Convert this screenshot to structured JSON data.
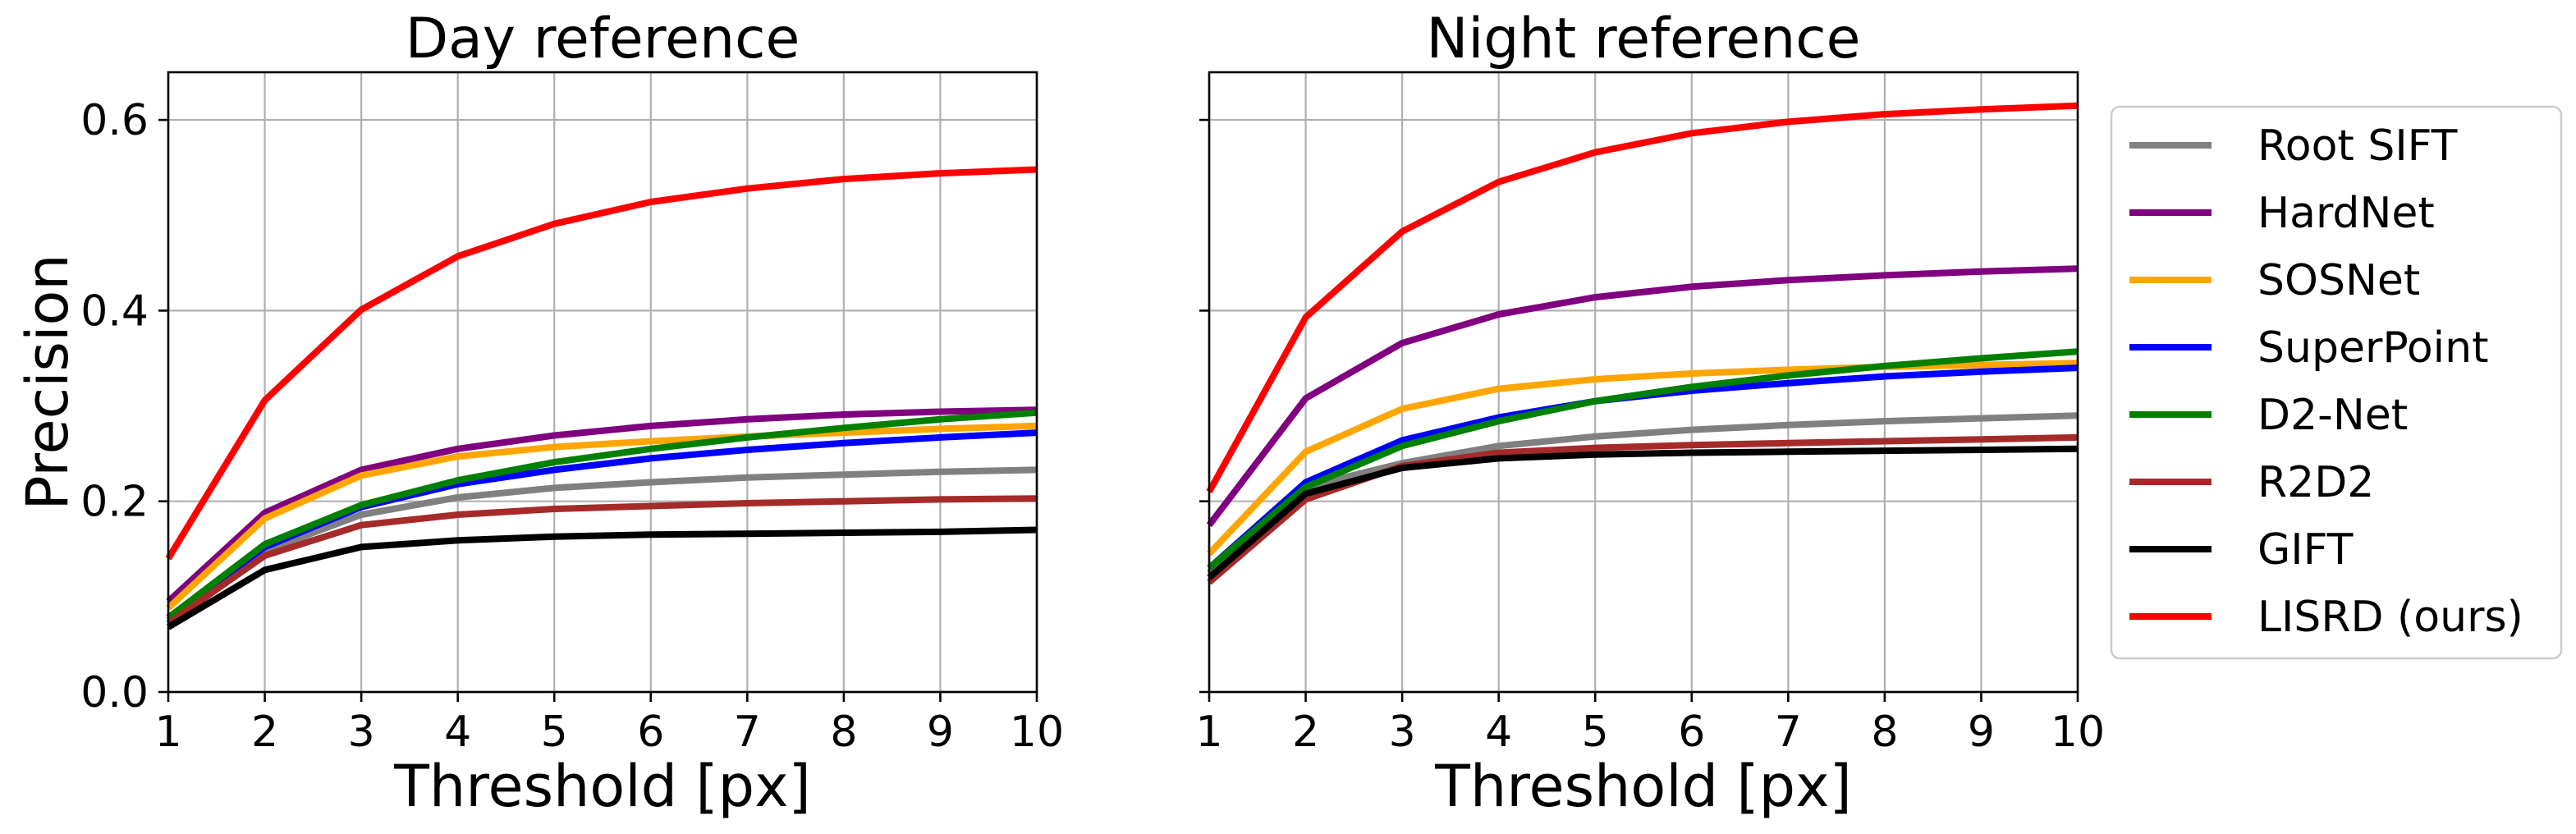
{
  "chart_data": [
    {
      "type": "line",
      "title": "Day reference",
      "xlabel": "Threshold [px]",
      "ylabel": "Precision",
      "x": [
        1,
        2,
        3,
        4,
        5,
        6,
        7,
        8,
        9,
        10
      ],
      "xlim": [
        1,
        10
      ],
      "ylim": [
        0,
        0.65
      ],
      "x_ticks": [
        "1",
        "2",
        "3",
        "4",
        "5",
        "6",
        "7",
        "8",
        "9",
        "10"
      ],
      "y_ticks": [
        "0.0",
        "0.2",
        "0.4",
        "0.6"
      ],
      "y_tick_values": [
        0,
        0.2,
        0.4,
        0.6
      ],
      "grid": true,
      "series": [
        {
          "name": "Root SIFT",
          "color": "#808080",
          "values": [
            0.075,
            0.148,
            0.186,
            0.204,
            0.214,
            0.22,
            0.225,
            0.228,
            0.231,
            0.233
          ]
        },
        {
          "name": "HardNet",
          "color": "#800080",
          "values": [
            0.095,
            0.188,
            0.233,
            0.255,
            0.269,
            0.279,
            0.286,
            0.291,
            0.294,
            0.296
          ]
        },
        {
          "name": "SOSNet",
          "color": "#ffa500",
          "values": [
            0.088,
            0.182,
            0.227,
            0.247,
            0.257,
            0.263,
            0.268,
            0.272,
            0.276,
            0.279
          ]
        },
        {
          "name": "SuperPoint",
          "color": "#0000ff",
          "values": [
            0.078,
            0.152,
            0.194,
            0.218,
            0.233,
            0.245,
            0.254,
            0.261,
            0.267,
            0.272
          ]
        },
        {
          "name": "D2-Net",
          "color": "#008000",
          "values": [
            0.078,
            0.155,
            0.196,
            0.222,
            0.241,
            0.255,
            0.267,
            0.277,
            0.286,
            0.293
          ]
        },
        {
          "name": "R2D2",
          "color": "#a52a2a",
          "values": [
            0.072,
            0.143,
            0.175,
            0.186,
            0.192,
            0.195,
            0.198,
            0.2,
            0.202,
            0.203
          ]
        },
        {
          "name": "GIFT",
          "color": "#000000",
          "values": [
            0.068,
            0.128,
            0.152,
            0.159,
            0.163,
            0.165,
            0.166,
            0.167,
            0.168,
            0.17
          ]
        },
        {
          "name": "LISRD (ours)",
          "color": "#ff0000",
          "values": [
            0.14,
            0.306,
            0.401,
            0.457,
            0.491,
            0.514,
            0.528,
            0.538,
            0.544,
            0.548
          ]
        }
      ]
    },
    {
      "type": "line",
      "title": "Night reference",
      "xlabel": "Threshold [px]",
      "ylabel": "",
      "x": [
        1,
        2,
        3,
        4,
        5,
        6,
        7,
        8,
        9,
        10
      ],
      "xlim": [
        1,
        10
      ],
      "ylim": [
        0,
        0.65
      ],
      "x_ticks": [
        "1",
        "2",
        "3",
        "4",
        "5",
        "6",
        "7",
        "8",
        "9",
        "10"
      ],
      "y_ticks": [],
      "y_tick_values": [
        0,
        0.2,
        0.4,
        0.6
      ],
      "grid": true,
      "legend": "right-outside",
      "series": [
        {
          "name": "Root SIFT",
          "color": "#808080",
          "values": [
            0.125,
            0.215,
            0.24,
            0.258,
            0.268,
            0.275,
            0.28,
            0.284,
            0.287,
            0.29
          ]
        },
        {
          "name": "HardNet",
          "color": "#800080",
          "values": [
            0.175,
            0.308,
            0.366,
            0.396,
            0.414,
            0.425,
            0.432,
            0.437,
            0.441,
            0.444
          ]
        },
        {
          "name": "SOSNet",
          "color": "#ffa500",
          "values": [
            0.145,
            0.252,
            0.297,
            0.318,
            0.328,
            0.334,
            0.338,
            0.341,
            0.343,
            0.345
          ]
        },
        {
          "name": "SuperPoint",
          "color": "#0000ff",
          "values": [
            0.13,
            0.22,
            0.264,
            0.288,
            0.305,
            0.316,
            0.324,
            0.331,
            0.336,
            0.34
          ]
        },
        {
          "name": "D2-Net",
          "color": "#008000",
          "values": [
            0.13,
            0.215,
            0.258,
            0.284,
            0.305,
            0.32,
            0.332,
            0.342,
            0.35,
            0.357
          ]
        },
        {
          "name": "R2D2",
          "color": "#a52a2a",
          "values": [
            0.115,
            0.202,
            0.237,
            0.251,
            0.256,
            0.259,
            0.261,
            0.263,
            0.265,
            0.267
          ]
        },
        {
          "name": "GIFT",
          "color": "#000000",
          "values": [
            0.12,
            0.208,
            0.235,
            0.245,
            0.249,
            0.251,
            0.252,
            0.253,
            0.254,
            0.255
          ]
        },
        {
          "name": "LISRD (ours)",
          "color": "#ff0000",
          "values": [
            0.21,
            0.393,
            0.483,
            0.535,
            0.566,
            0.586,
            0.598,
            0.606,
            0.611,
            0.615
          ]
        }
      ]
    }
  ]
}
